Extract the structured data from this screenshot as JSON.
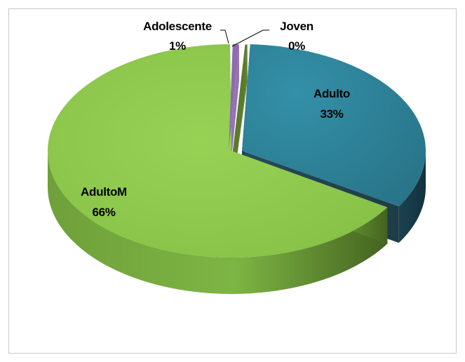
{
  "chart_data": {
    "type": "pie",
    "style": "3d-exploded",
    "title": "",
    "legend": "none",
    "categories": [
      "Adulto",
      "AdultoM",
      "Adolescente",
      "Joven"
    ],
    "values": [
      33,
      66,
      1,
      0
    ],
    "labels": {
      "Adulto": {
        "name": "Adulto",
        "pct": "33%"
      },
      "AdultoM": {
        "name": "AdultoM",
        "pct": "66%"
      },
      "Adolescente": {
        "name": "Adolescente",
        "pct": "1%"
      },
      "Joven": {
        "name": "Joven",
        "pct": "0%"
      }
    },
    "colors": {
      "Adulto": "#2e8096",
      "AdultoM": "#8cc64a",
      "Adolescente": "#8e6bb0",
      "Joven": "#5a7a2a"
    }
  }
}
